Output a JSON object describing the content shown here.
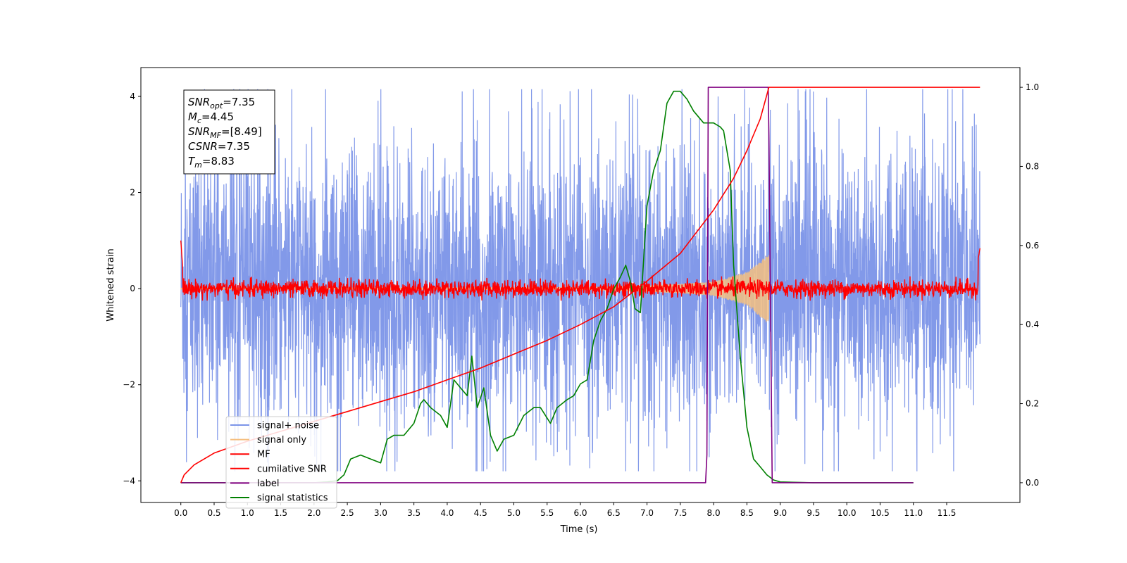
{
  "chart_data": {
    "type": "line",
    "xlabel": "Time (s)",
    "ylabel": "Whitened strain",
    "xlim": [
      -0.6,
      12.6
    ],
    "ylim_left": [
      -4.45,
      4.6
    ],
    "ylim_right": [
      -0.05,
      1.05
    ],
    "x_ticks": [
      0.0,
      0.5,
      1.0,
      1.5,
      2.0,
      2.5,
      3.0,
      3.5,
      4.0,
      4.5,
      5.0,
      5.5,
      6.0,
      6.5,
      7.0,
      7.5,
      8.0,
      8.5,
      9.0,
      9.5,
      10.0,
      10.5,
      11.0,
      11.5
    ],
    "x_tick_labels": [
      "0.0",
      "0.5",
      "1.0",
      "1.5",
      "2.0",
      "2.5",
      "3.0",
      "3.5",
      "4.0",
      "4.5",
      "5.0",
      "5.5",
      "6.0",
      "6.5",
      "7.0",
      "7.5",
      "8.0",
      "8.5",
      "9.0",
      "9.5",
      "10.0",
      "10.5",
      "11.0",
      "11.5"
    ],
    "y_left_ticks": [
      -4,
      -2,
      0,
      2,
      4
    ],
    "y_left_tick_labels": [
      "−4",
      "−2",
      "0",
      "2",
      "4"
    ],
    "y_right_ticks": [
      0.0,
      0.2,
      0.4,
      0.6,
      0.8,
      1.0
    ],
    "y_right_tick_labels": [
      "0.0",
      "0.2",
      "0.4",
      "0.6",
      "0.8",
      "1.0"
    ],
    "annotation": {
      "lines": [
        {
          "sym": "SNR",
          "sub": "opt",
          "rest": "=7.35"
        },
        {
          "sym": "M",
          "sub": "c",
          "rest": "=4.45"
        },
        {
          "sym": "SNR",
          "sub": "MF",
          "rest": "=[8.49]"
        },
        {
          "sym": "CSNR",
          "sub": "",
          "rest": "=7.35"
        },
        {
          "sym": "T",
          "sub": "m",
          "rest": "=8.83"
        }
      ]
    },
    "legend": {
      "placement": "lower-left",
      "entries": [
        {
          "label": "signal+ noise",
          "color": "#7b94e8"
        },
        {
          "label": "signal only",
          "color": "#f5bf80"
        },
        {
          "label": "MF",
          "color": "#ff0000"
        },
        {
          "label": "cumilative SNR",
          "color": "#ff0000"
        },
        {
          "label": "label",
          "color": "#800080"
        },
        {
          "label": "signal statistics",
          "color": "#008000"
        }
      ]
    },
    "series": [
      {
        "name": "signal+ noise",
        "axis": "left",
        "color": "#7b94e8",
        "x_range": [
          0.0,
          12.0
        ],
        "envelope": [
          -3.8,
          4.15
        ],
        "typical_band": [
          -1.5,
          1.6
        ]
      },
      {
        "name": "signal only",
        "axis": "left",
        "color": "#f5bf80",
        "x_range": [
          0.0,
          8.83
        ],
        "amplitude": {
          "x": [
            0.0,
            6.0,
            7.0,
            7.5,
            8.0,
            8.5,
            8.83
          ],
          "y": [
            0.02,
            0.03,
            0.07,
            0.1,
            0.15,
            0.35,
            0.75
          ]
        }
      },
      {
        "name": "MF",
        "axis": "left",
        "color": "#ff0000",
        "x_range": [
          0.0,
          12.0
        ],
        "baseline": 0.0,
        "band": [
          -0.2,
          0.4
        ]
      },
      {
        "name": "cumilative SNR",
        "axis": "right",
        "color": "#ff0000",
        "x": [
          0.0,
          0.05,
          0.2,
          0.5,
          1.0,
          1.5,
          2.0,
          2.5,
          3.0,
          3.5,
          4.0,
          4.5,
          5.0,
          5.5,
          6.0,
          6.5,
          7.0,
          7.5,
          8.0,
          8.3,
          8.5,
          8.7,
          8.83,
          9.0,
          10.0,
          11.0,
          12.0
        ],
        "y": [
          0.0,
          0.02,
          0.045,
          0.075,
          0.105,
          0.13,
          0.155,
          0.18,
          0.205,
          0.23,
          0.26,
          0.29,
          0.325,
          0.36,
          0.4,
          0.445,
          0.51,
          0.58,
          0.69,
          0.77,
          0.84,
          0.92,
          1.0,
          1.0,
          1.0,
          1.0,
          1.0
        ]
      },
      {
        "name": "label",
        "axis": "right",
        "color": "#800080",
        "x": [
          0.0,
          7.88,
          7.9,
          7.92,
          8.82,
          8.83,
          8.88,
          11.0
        ],
        "y": [
          0.0,
          0.0,
          0.07,
          1.0,
          1.0,
          0.88,
          0.0,
          0.0
        ]
      },
      {
        "name": "signal statistics",
        "axis": "right",
        "color": "#008000",
        "x": [
          0.0,
          0.5,
          1.0,
          1.5,
          2.0,
          2.2,
          2.35,
          2.45,
          2.55,
          2.7,
          2.85,
          3.0,
          3.1,
          3.2,
          3.35,
          3.5,
          3.6,
          3.65,
          3.75,
          3.9,
          4.0,
          4.1,
          4.2,
          4.3,
          4.37,
          4.45,
          4.55,
          4.65,
          4.75,
          4.85,
          5.0,
          5.15,
          5.3,
          5.4,
          5.55,
          5.65,
          5.8,
          5.9,
          6.0,
          6.1,
          6.2,
          6.3,
          6.4,
          6.5,
          6.6,
          6.68,
          6.75,
          6.82,
          6.9,
          7.0,
          7.1,
          7.2,
          7.3,
          7.4,
          7.5,
          7.6,
          7.7,
          7.85,
          8.0,
          8.1,
          8.15,
          8.25,
          8.3,
          8.4,
          8.5,
          8.6,
          8.7,
          8.8,
          8.9,
          9.0,
          9.2,
          9.5,
          10.0,
          11.0
        ],
        "y": [
          0.0,
          0.0,
          0.0,
          0.0,
          0.0,
          0.002,
          0.005,
          0.02,
          0.06,
          0.07,
          0.06,
          0.05,
          0.11,
          0.12,
          0.12,
          0.15,
          0.2,
          0.21,
          0.19,
          0.17,
          0.14,
          0.26,
          0.24,
          0.22,
          0.32,
          0.19,
          0.24,
          0.12,
          0.08,
          0.11,
          0.12,
          0.17,
          0.19,
          0.19,
          0.15,
          0.19,
          0.21,
          0.22,
          0.25,
          0.26,
          0.36,
          0.41,
          0.44,
          0.49,
          0.52,
          0.55,
          0.51,
          0.44,
          0.43,
          0.7,
          0.79,
          0.84,
          0.96,
          0.99,
          0.99,
          0.97,
          0.94,
          0.91,
          0.91,
          0.9,
          0.89,
          0.79,
          0.55,
          0.32,
          0.14,
          0.06,
          0.04,
          0.02,
          0.007,
          0.002,
          0.001,
          0.0,
          0.0,
          0.0
        ]
      }
    ]
  }
}
